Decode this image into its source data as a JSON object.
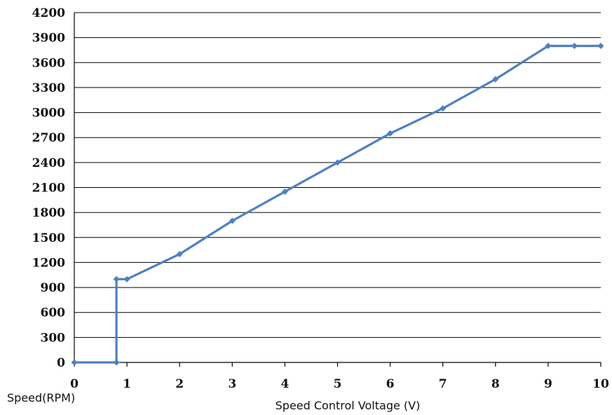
{
  "chart_data": {
    "type": "line",
    "title": "",
    "xlabel": "Speed Control Voltage (V)",
    "ylabel": "Speed(RPM)",
    "xlim": [
      0,
      10
    ],
    "ylim": [
      0,
      4200
    ],
    "x_ticks": [
      0,
      1,
      2,
      3,
      4,
      5,
      6,
      7,
      8,
      9,
      10
    ],
    "y_ticks": [
      0,
      300,
      600,
      900,
      1200,
      1500,
      1800,
      2100,
      2400,
      2700,
      3000,
      3300,
      3600,
      3900,
      4200
    ],
    "grid": "horizontal",
    "legend": "none",
    "series": [
      {
        "color": "#4f81bd",
        "points": [
          [
            0,
            0
          ],
          [
            0.8,
            0
          ],
          [
            0.8,
            1000
          ],
          [
            1,
            1000
          ],
          [
            2,
            1300
          ],
          [
            3,
            1700
          ],
          [
            4,
            2050
          ],
          [
            5,
            2400
          ],
          [
            6,
            2750
          ],
          [
            7,
            3050
          ],
          [
            8,
            3400
          ],
          [
            9,
            3800
          ],
          [
            9.5,
            3800
          ],
          [
            10,
            3800
          ]
        ]
      }
    ]
  }
}
